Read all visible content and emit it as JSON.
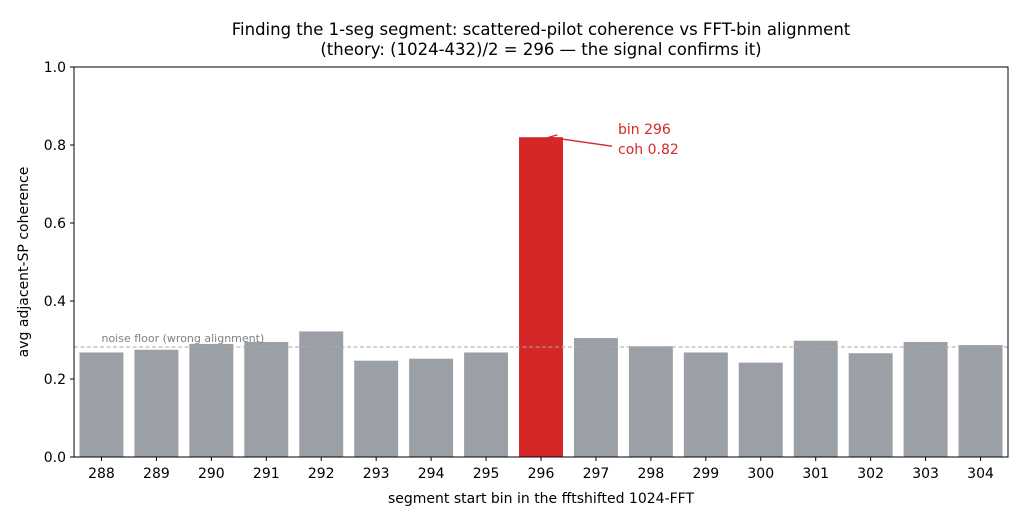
{
  "chart_data": {
    "type": "bar",
    "title": "Finding the 1-seg segment: scattered-pilot coherence vs FFT-bin alignment",
    "subtitle": "(theory: (1024-432)/2 = 296 — the signal confirms it)",
    "xlabel": "segment start bin in the fftshifted 1024-FFT",
    "ylabel": "avg adjacent-SP coherence",
    "categories": [
      "288",
      "289",
      "290",
      "291",
      "292",
      "293",
      "294",
      "295",
      "296",
      "297",
      "298",
      "299",
      "300",
      "301",
      "302",
      "303",
      "304"
    ],
    "values": [
      0.268,
      0.275,
      0.29,
      0.295,
      0.322,
      0.247,
      0.252,
      0.268,
      0.82,
      0.305,
      0.284,
      0.268,
      0.242,
      0.298,
      0.266,
      0.295,
      0.287
    ],
    "highlight_category": "296",
    "ylim": [
      0,
      1.0
    ],
    "yticks": [
      "0.0",
      "0.2",
      "0.4",
      "0.6",
      "0.8",
      "1.0"
    ],
    "grid": false,
    "reference_line": {
      "value": 0.282,
      "label": "noise floor (wrong alignment)"
    },
    "annotation": {
      "lines": [
        "bin 296",
        "coh 0.82"
      ],
      "target_category": "296"
    },
    "colors": {
      "bar": "#9aa0a6",
      "highlight": "#d62728",
      "reference_line": "#aaaaaa",
      "reference_text": "#808080",
      "annotation": "#d62728"
    }
  }
}
